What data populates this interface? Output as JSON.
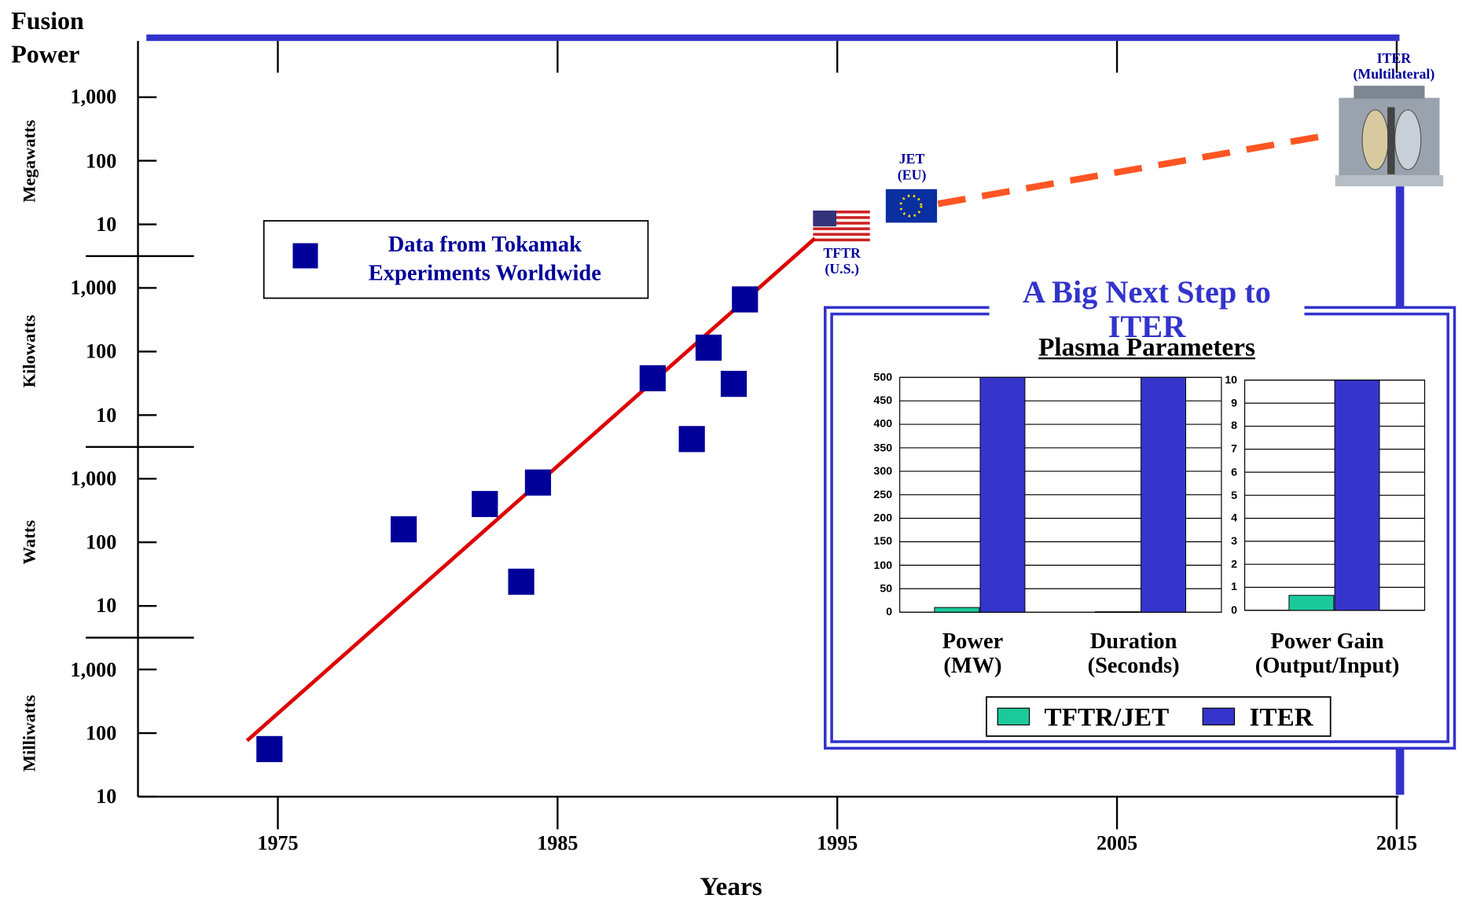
{
  "chart_data": [
    {
      "type": "scatter",
      "y_title": "Fusion\nPower",
      "x_title": "Years",
      "y_unit_groups": [
        "Milliwatts",
        "Watts",
        "Kilowatts",
        "Megawatts"
      ],
      "log_y": true,
      "xlim": [
        1970,
        2015
      ],
      "xticks": [
        1975,
        1985,
        1995,
        2005,
        2015
      ],
      "ylim": [
        0.01,
        10000000000
      ],
      "yticks": [
        {
          "value": 0.01,
          "label": "10"
        },
        {
          "value": 0.1,
          "label": "100"
        },
        {
          "value": 1,
          "label": "1,000"
        },
        10,
        100,
        {
          "value": 1000,
          "label": "1,000"
        },
        {
          "value": 10000,
          "label": "10"
        },
        {
          "value": 100000,
          "label": "100"
        },
        {
          "value": 1000000,
          "label": "1,000"
        },
        {
          "value": 10000000,
          "label": "10"
        },
        {
          "value": 100000000,
          "label": "100"
        },
        {
          "value": 1000000000,
          "label": "1,000"
        }
      ],
      "series": [
        {
          "name": "Data from Tokamak\nExperiments Worldwide",
          "color": "#000099",
          "x": [
            1974.7,
            1979.5,
            1982.4,
            1983.7,
            1984.3,
            1988.4,
            1989.8,
            1990.4,
            1991.3,
            1991.7
          ],
          "values": [
            0.056,
            160,
            400,
            24,
            870,
            38000,
            4200,
            115000,
            31000,
            660000
          ]
        }
      ],
      "lines": [
        {
          "color": "#dd0000",
          "style": "solid",
          "x": [
            1973.9,
            1994.2
          ],
          "values": [
            0.076,
            6000000
          ]
        },
        {
          "color": "#ff5522",
          "style": "dashed",
          "x": [
            1998.6,
            2012.5
          ],
          "values": [
            21000000,
            250000000
          ]
        }
      ],
      "annotations": [
        "TFTR\n(U.S.)",
        "JET\n(EU)",
        "ITER\n(Multilateral)"
      ]
    },
    {
      "type": "bar",
      "title": "A Big Next Step to ITER",
      "subtitle": "Plasma Parameters",
      "categories": [
        "Power\n(MW)",
        "Duration\n(Seconds)",
        "Power Gain\n(Output/Input)"
      ],
      "category_axis": [
        "y",
        "y",
        "y2"
      ],
      "ylim": [
        0,
        500
      ],
      "yticks": [
        0,
        50,
        100,
        150,
        200,
        250,
        300,
        350,
        400,
        450,
        500
      ],
      "y2lim": [
        0,
        10
      ],
      "y2ticks": [
        0,
        1,
        2,
        3,
        4,
        5,
        6,
        7,
        8,
        9,
        10
      ],
      "grid": true,
      "legend": "bottom",
      "series": [
        {
          "name": "TFTR/JET",
          "color": "#1bc99b",
          "values": [
            10,
            1,
            0.65
          ]
        },
        {
          "name": "ITER",
          "color": "#3535cc",
          "values": [
            500,
            500,
            10
          ]
        }
      ]
    }
  ]
}
